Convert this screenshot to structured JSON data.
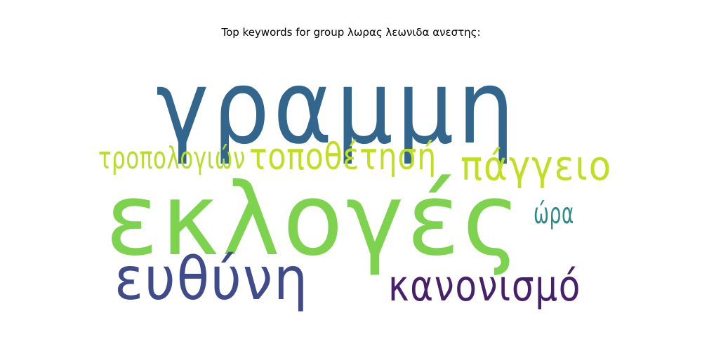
{
  "chart_data": {
    "type": "wordcloud",
    "title": "Top keywords for group λωρας λεωνιδα ανεστης:",
    "words": [
      {
        "text": "γραμμη",
        "weight": 1.0,
        "color": "#33668c"
      },
      {
        "text": "εκλογές",
        "weight": 0.98,
        "color": "#7ed34e"
      },
      {
        "text": "ευθύνη",
        "weight": 0.58,
        "color": "#3f4b8a"
      },
      {
        "text": "κανονισμό",
        "weight": 0.42,
        "color": "#46206b"
      },
      {
        "text": "πάγγειο",
        "weight": 0.4,
        "color": "#c1df22"
      },
      {
        "text": "τοποθέτησή",
        "weight": 0.36,
        "color": "#c1df22"
      },
      {
        "text": "τροπολογιών",
        "weight": 0.3,
        "color": "#b6dd2b"
      },
      {
        "text": "ώρα",
        "weight": 0.28,
        "color": "#2a8a8c"
      }
    ],
    "background": "#ffffff",
    "axes": "off",
    "grid": false
  }
}
